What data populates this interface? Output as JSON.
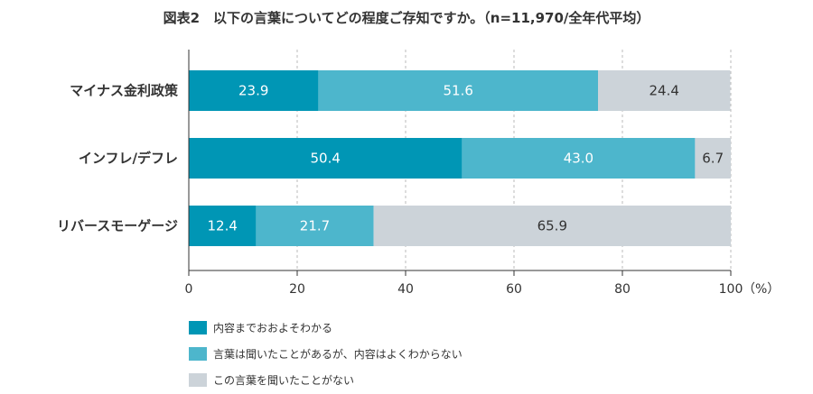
{
  "chart_data": {
    "type": "bar",
    "orientation": "horizontal",
    "stacked": true,
    "title": "図表2　以下の言葉についてどの程度ご存知ですか。（n=11,970/全年代平均）",
    "categories": [
      "マイナス金利政策",
      "インフレ/デフレ",
      "リバースモーゲージ"
    ],
    "series": [
      {
        "name": "内容までおおよそわかる",
        "values": [
          23.9,
          50.4,
          12.4
        ],
        "color": "#0096b5"
      },
      {
        "name": "言葉は聞いたことがあるが、内容はよくわからない",
        "values": [
          51.6,
          43.0,
          21.7
        ],
        "color": "#4db6cc"
      },
      {
        "name": "この言葉を聞いたことがない",
        "values": [
          24.4,
          6.7,
          65.9
        ],
        "color": "#ccd3d9"
      }
    ],
    "xlim": [
      0,
      100
    ],
    "xticks": [
      "0",
      "20",
      "40",
      "60",
      "80",
      "100"
    ],
    "xunit": "（%）",
    "grid": "vertical dashed",
    "legend": "bottom"
  }
}
